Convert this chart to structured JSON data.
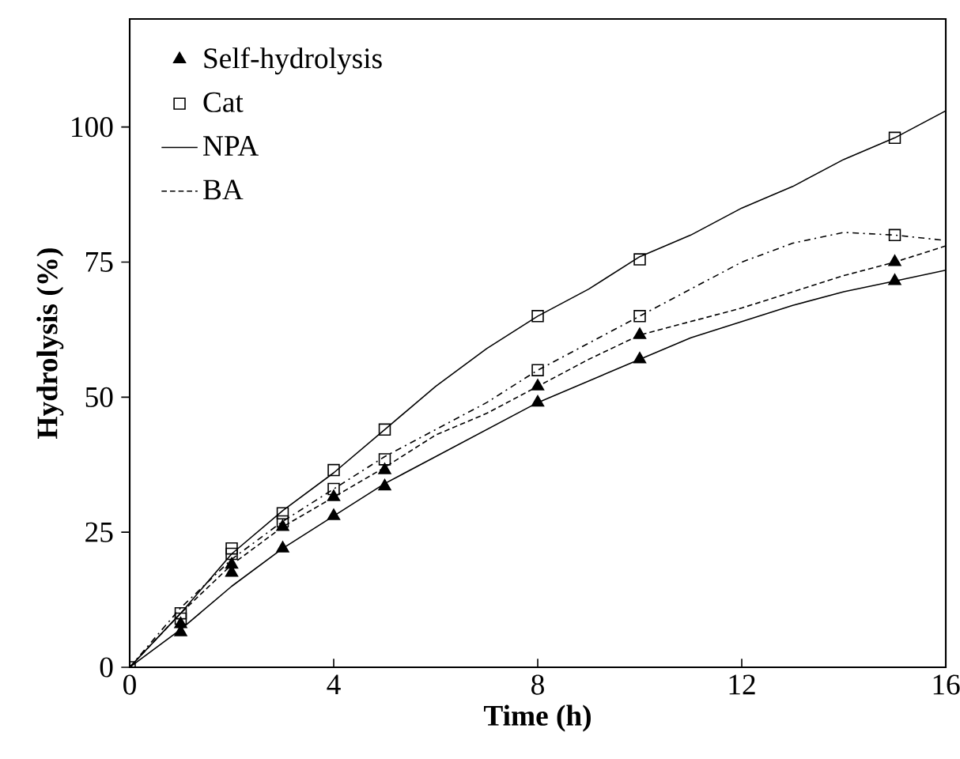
{
  "chart_data": {
    "type": "line",
    "xlabel": "Time (h)",
    "ylabel": "Hydrolysis (%)",
    "xlim": [
      0,
      16
    ],
    "ylim": [
      0,
      120
    ],
    "xticks": [
      0,
      4,
      8,
      12,
      16
    ],
    "yticks": [
      0,
      25,
      50,
      75,
      100
    ],
    "grid": false,
    "legend": "top left",
    "series": [
      {
        "name": "Self-hydrolysis",
        "type": "scatter",
        "marker": "triangle",
        "color": "#000000",
        "x": [
          1,
          2,
          3,
          4,
          5,
          8,
          10,
          15
        ],
        "values": [
          6.5,
          17.5,
          22,
          28,
          33.5,
          49,
          57,
          71.5
        ]
      },
      {
        "type": "scatter",
        "marker": "triangle",
        "color": "#000000",
        "x": [
          1,
          2,
          3,
          4,
          5,
          8,
          10,
          15
        ],
        "values": [
          8,
          19,
          26,
          31.5,
          36.5,
          52,
          61.5,
          75
        ]
      },
      {
        "name": "Cat",
        "type": "scatter",
        "marker": "square",
        "color": "#000000",
        "x": [
          0,
          1,
          2,
          3,
          4,
          5,
          8,
          10,
          15
        ],
        "values": [
          0,
          10,
          22,
          28.5,
          36.5,
          44,
          65,
          75.5,
          98
        ]
      },
      {
        "type": "scatter",
        "marker": "square",
        "color": "#000000",
        "x": [
          1,
          2,
          3,
          4,
          5,
          8,
          10,
          15
        ],
        "values": [
          9,
          21,
          27,
          33,
          38.5,
          55,
          65,
          80
        ]
      },
      {
        "name": "NPA",
        "line_style": "solid",
        "color": "#000000",
        "x": [
          0,
          1,
          2,
          3,
          4,
          5,
          6,
          7,
          8,
          9,
          10,
          11,
          12,
          13,
          14,
          15,
          16
        ],
        "values": [
          0,
          7,
          15,
          22,
          28,
          34,
          39,
          44,
          49,
          53,
          57,
          61,
          64,
          67,
          69.5,
          71.5,
          73.5
        ]
      },
      {
        "line_style": "solid",
        "color": "#000000",
        "x": [
          0,
          1,
          2,
          3,
          4,
          5,
          6,
          7,
          8,
          9,
          10,
          11,
          12,
          13,
          14,
          15,
          16
        ],
        "values": [
          0,
          10,
          21,
          29,
          36,
          44,
          52,
          59,
          65,
          70,
          76,
          80,
          85,
          89,
          94,
          98,
          103
        ]
      },
      {
        "name": "BA",
        "line_style": "dashed",
        "color": "#000000",
        "x": [
          0,
          1,
          2,
          3,
          4,
          5,
          6,
          7,
          8,
          9,
          10,
          11,
          12,
          13,
          14,
          15,
          16
        ],
        "values": [
          0,
          10,
          19,
          26,
          31.5,
          37,
          43,
          47,
          52,
          57,
          61.5,
          64,
          66.5,
          69.5,
          72.5,
          75,
          78
        ]
      },
      {
        "line_style": "dotted",
        "color": "#000000",
        "x": [
          0,
          1,
          2,
          3,
          4,
          5,
          6,
          7,
          8,
          9,
          10,
          11,
          12,
          13,
          14,
          15,
          16
        ],
        "values": [
          0,
          11,
          20,
          27,
          33,
          39,
          44,
          49,
          55,
          60,
          65,
          70,
          75,
          78.5,
          80.5,
          80,
          79
        ]
      }
    ]
  }
}
